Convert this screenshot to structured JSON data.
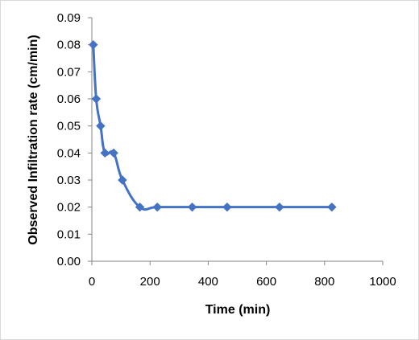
{
  "chart_data": {
    "type": "line",
    "title": "",
    "xlabel": "Time (min)",
    "ylabel": "Observed Infiltration rate (cm/min)",
    "xlim": [
      0,
      1000
    ],
    "ylim": [
      0,
      0.09
    ],
    "xticks": [
      "0",
      "200",
      "400",
      "600",
      "800",
      "1000"
    ],
    "yticks": [
      "0.00",
      "0.01",
      "0.02",
      "0.03",
      "0.04",
      "0.05",
      "0.06",
      "0.07",
      "0.08",
      "0.09"
    ],
    "grid": false,
    "legend": "none",
    "smooth": true,
    "series": [
      {
        "color": "#4472c4",
        "marker": "diamond",
        "points": [
          [
            5,
            0.08
          ],
          [
            15,
            0.06
          ],
          [
            30,
            0.05
          ],
          [
            45,
            0.04
          ],
          [
            75,
            0.04
          ],
          [
            105,
            0.03
          ],
          [
            165,
            0.02
          ],
          [
            225,
            0.02
          ],
          [
            345,
            0.02
          ],
          [
            465,
            0.02
          ],
          [
            645,
            0.02
          ],
          [
            825,
            0.02
          ]
        ]
      }
    ]
  }
}
